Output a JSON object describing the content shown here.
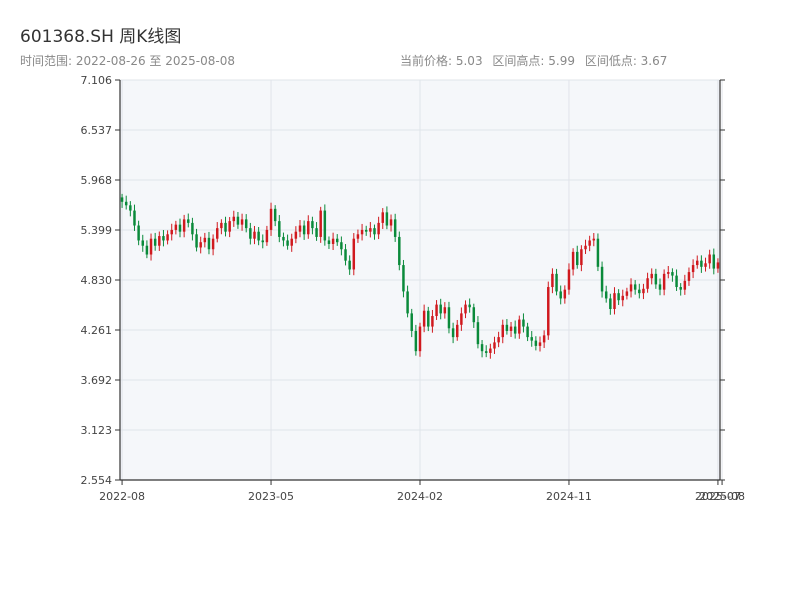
{
  "header": {
    "title": "601368.SH 周K线图",
    "range_text": "时间范围: 2022-08-26 至 2025-08-08",
    "current_price_text": "当前价格: 5.03",
    "high_text": "区间高点: 5.99",
    "low_text": "区间低点: 3.67"
  },
  "colors": {
    "up": "#d0191e",
    "down": "#0a8a3a",
    "plot_bg": "#f5f7fa",
    "grid": "#e0e4ea",
    "axis": "#333333"
  },
  "chart_data": {
    "type": "candlestick",
    "title": "601368.SH 周K线图",
    "ylim": [
      2.554,
      7.106
    ],
    "y_ticks": [
      "2.554",
      "3.123",
      "3.692",
      "4.261",
      "4.830",
      "5.399",
      "5.968",
      "6.537",
      "7.106"
    ],
    "x_ticks": [
      {
        "label": "2022-08",
        "week": 0
      },
      {
        "label": "2023-05",
        "week": 36
      },
      {
        "label": "2024-02",
        "week": 72
      },
      {
        "label": "2024-11",
        "week": 108
      },
      {
        "label": "2025-07",
        "week": 144
      },
      {
        "label": "2025-08",
        "week": 145
      }
    ],
    "start_week_label": "2022-08-26",
    "end_week_label": "2025-08-08",
    "interval_high": 5.99,
    "interval_low": 3.67,
    "current_price": 5.03,
    "closes": [
      5.72,
      5.68,
      5.62,
      5.45,
      5.28,
      5.22,
      5.12,
      5.3,
      5.22,
      5.33,
      5.28,
      5.35,
      5.4,
      5.46,
      5.38,
      5.52,
      5.48,
      5.35,
      5.2,
      5.26,
      5.31,
      5.18,
      5.3,
      5.42,
      5.48,
      5.38,
      5.5,
      5.55,
      5.46,
      5.52,
      5.42,
      5.3,
      5.38,
      5.28,
      5.26,
      5.4,
      5.64,
      5.5,
      5.32,
      5.28,
      5.22,
      5.3,
      5.38,
      5.45,
      5.35,
      5.5,
      5.42,
      5.32,
      5.62,
      5.28,
      5.24,
      5.3,
      5.26,
      5.18,
      5.05,
      4.95,
      5.3,
      5.35,
      5.4,
      5.38,
      5.42,
      5.35,
      5.48,
      5.6,
      5.45,
      5.52,
      5.32,
      5.0,
      4.7,
      4.45,
      4.25,
      4.02,
      4.3,
      4.48,
      4.3,
      4.42,
      4.55,
      4.45,
      4.52,
      4.28,
      4.18,
      4.32,
      4.45,
      4.55,
      4.52,
      4.35,
      4.1,
      4.02,
      4.0,
      4.05,
      4.12,
      4.18,
      4.32,
      4.25,
      4.3,
      4.22,
      4.38,
      4.3,
      4.18,
      4.14,
      4.08,
      4.12,
      4.2,
      4.75,
      4.9,
      4.7,
      4.62,
      4.72,
      4.95,
      5.15,
      5.0,
      5.18,
      5.22,
      5.28,
      5.3,
      4.98,
      4.7,
      4.62,
      4.5,
      4.68,
      4.6,
      4.65,
      4.7,
      4.78,
      4.72,
      4.68,
      4.73,
      4.85,
      4.9,
      4.78,
      4.72,
      4.9,
      4.92,
      4.88,
      4.75,
      4.72,
      4.82,
      4.92,
      5.0,
      5.05,
      4.98,
      5.02,
      5.12,
      4.96,
      5.03
    ]
  }
}
